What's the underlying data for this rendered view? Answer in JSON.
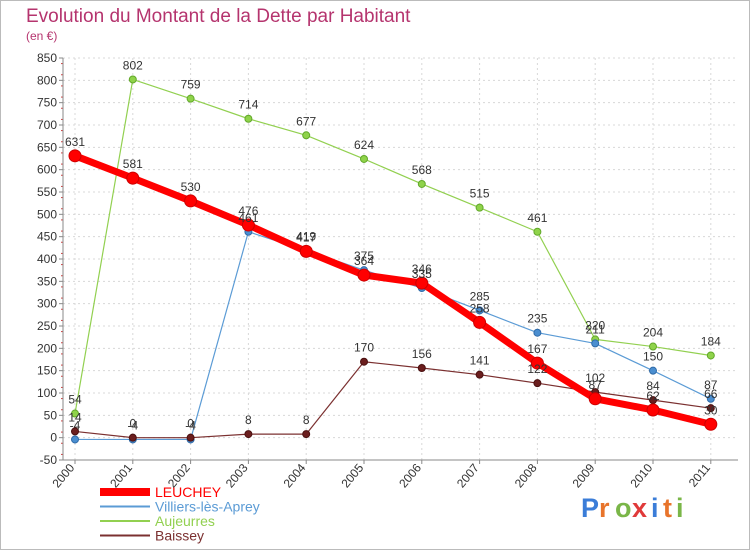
{
  "chart_data": {
    "type": "line",
    "title": "Evolution du Montant de la Dette par Habitant",
    "subtitle": "(en €)",
    "xlabel": "",
    "ylabel": "",
    "ylim": [
      -50,
      850
    ],
    "yticks": [
      -50,
      0,
      50,
      100,
      150,
      200,
      250,
      300,
      350,
      400,
      450,
      500,
      550,
      600,
      650,
      700,
      750,
      800,
      850
    ],
    "categories": [
      "2000",
      "2001",
      "2002",
      "2003",
      "2004",
      "2005",
      "2006",
      "2007",
      "2008",
      "2009",
      "2010",
      "2011"
    ],
    "grid": true,
    "legend_position": "bottom-left",
    "series": [
      {
        "name": "LEUCHEY",
        "color": "#ff0000",
        "values": [
          631,
          581,
          530,
          476,
          417,
          364,
          346,
          258,
          167,
          87,
          62,
          30
        ]
      },
      {
        "name": "Villiers-lès-Aprey",
        "color": "#5b9bd5",
        "values": [
          -4,
          -4,
          -4,
          461,
          419,
          375,
          335,
          285,
          235,
          211,
          150,
          87
        ]
      },
      {
        "name": "Aujeurres",
        "color": "#92d050",
        "values": [
          54,
          802,
          759,
          714,
          677,
          624,
          568,
          515,
          461,
          220,
          204,
          184
        ]
      },
      {
        "name": "Baissey",
        "color": "#7b3030",
        "values": [
          14,
          0,
          0,
          8,
          8,
          170,
          156,
          141,
          122,
          102,
          84,
          66
        ]
      }
    ],
    "data_labels": [
      [
        "631",
        "581",
        "530",
        "476",
        "417",
        "364",
        "346",
        "258",
        "167",
        "87",
        "62",
        "30"
      ],
      [
        "-4",
        "-4",
        "-4",
        "461",
        "419",
        "375",
        "335",
        "285",
        "235",
        "211",
        "150",
        "87"
      ],
      [
        "54",
        "802",
        "759",
        "714",
        "677",
        "624",
        "568",
        "515",
        "461",
        "220",
        "204",
        "184"
      ],
      [
        "14",
        "0",
        "0",
        "8",
        "8",
        "170",
        "156",
        "141",
        "122",
        "102",
        "84",
        "66"
      ]
    ]
  },
  "logo": {
    "letters": [
      "P",
      "r",
      "o",
      "x",
      "i",
      "t",
      "i"
    ],
    "colors": [
      "#3b7dd8",
      "#e8742b",
      "#7ab648",
      "#e03a3a",
      "#3b7dd8",
      "#e8742b",
      "#7ab648"
    ]
  }
}
